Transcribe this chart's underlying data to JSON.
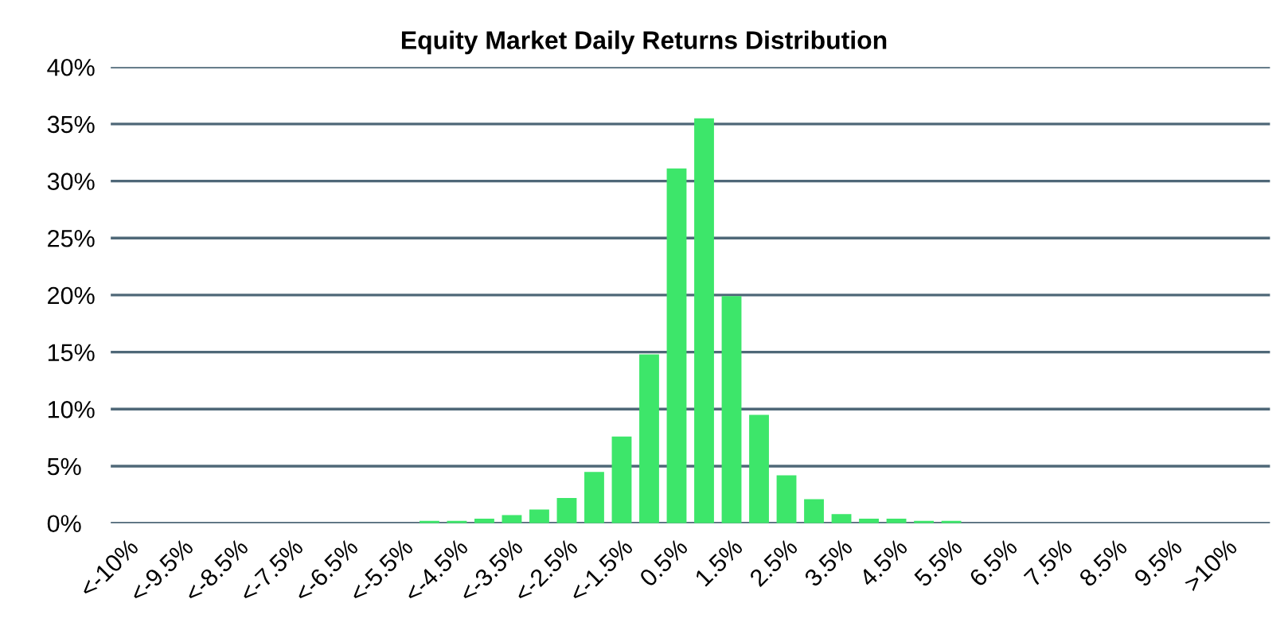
{
  "chart_data": {
    "type": "bar",
    "title": "Equity Market Daily Returns Distribution",
    "categories": [
      "<-10%",
      null,
      "<-9.5%",
      null,
      "<-8.5%",
      null,
      "<-7.5%",
      null,
      "<-6.5%",
      null,
      "<-5.5%",
      null,
      "<-4.5%",
      null,
      "<-3.5%",
      null,
      "<-2.5%",
      null,
      "<-1.5%",
      null,
      "0.5%",
      null,
      "1.5%",
      null,
      "2.5%",
      null,
      "3.5%",
      null,
      "4.5%",
      null,
      "5.5%",
      null,
      "6.5%",
      null,
      "7.5%",
      null,
      "8.5%",
      null,
      "9.5%",
      null,
      ">10%",
      null
    ],
    "values": [
      0,
      0,
      0,
      0,
      0,
      0,
      0,
      0,
      0,
      0,
      0,
      0.2,
      0.2,
      0.4,
      0.7,
      1.2,
      2.2,
      4.5,
      7.6,
      14.8,
      31.1,
      35.5,
      19.9,
      9.5,
      4.2,
      2.1,
      0.8,
      0.4,
      0.4,
      0.2,
      0.2,
      0,
      0,
      0,
      0,
      0,
      0,
      0,
      0,
      0,
      0,
      0
    ],
    "color": "#3de66a",
    "ylim": [
      0,
      40
    ],
    "yticks": [
      {
        "value": 0,
        "label": "0%"
      },
      {
        "value": 5,
        "label": "5%"
      },
      {
        "value": 10,
        "label": "10%"
      },
      {
        "value": 15,
        "label": "15%"
      },
      {
        "value": 20,
        "label": "20%"
      },
      {
        "value": 25,
        "label": "25%"
      },
      {
        "value": 30,
        "label": "30%"
      },
      {
        "value": 35,
        "label": "35%"
      },
      {
        "value": 40,
        "label": "40%"
      }
    ],
    "grid": "y"
  }
}
